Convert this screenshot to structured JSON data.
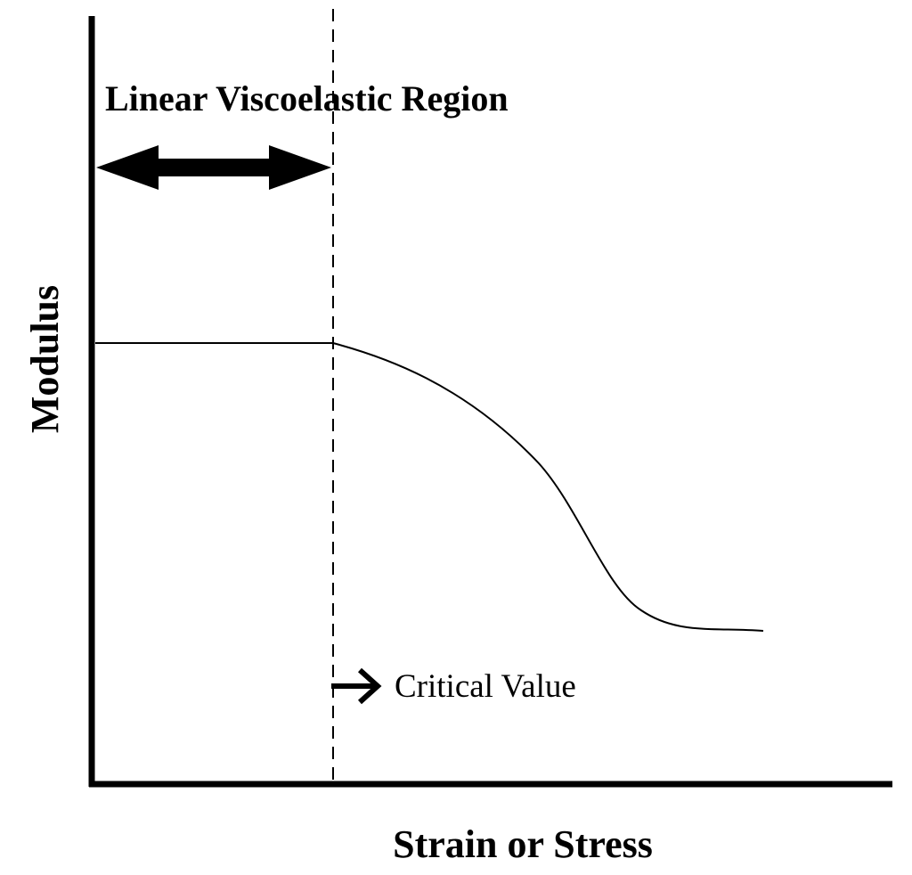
{
  "diagram": {
    "region_label": "Linear Viscoelastic Region",
    "critical_label": "Critical Value",
    "x_axis_label": "Strain or Stress",
    "y_axis_label": "Modulus"
  },
  "colors": {
    "ink": "#000000",
    "background": "#ffffff"
  }
}
